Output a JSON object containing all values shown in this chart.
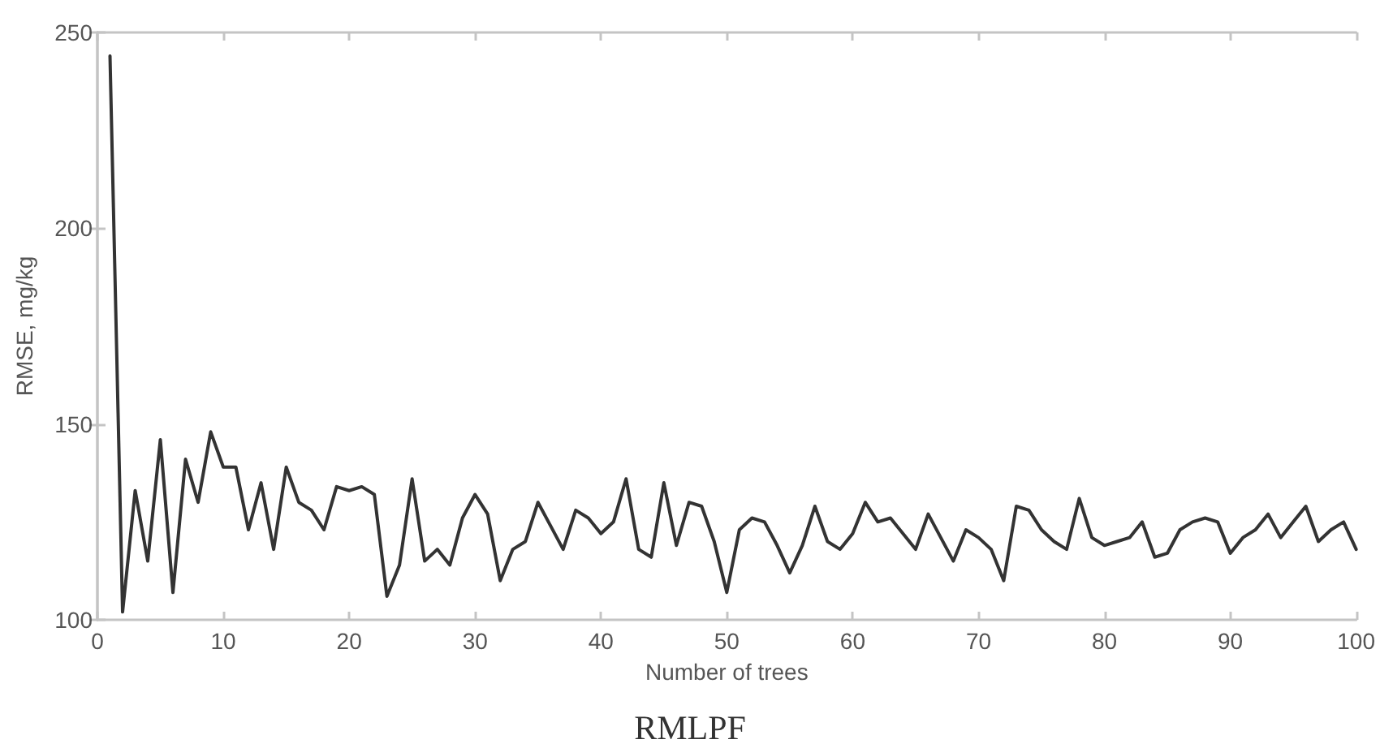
{
  "chart_data": {
    "type": "line",
    "title": "RMLPF",
    "xlabel": "Number of trees",
    "ylabel": "RMSE, mg/kg",
    "x": [
      1,
      2,
      3,
      4,
      5,
      6,
      7,
      8,
      9,
      10,
      11,
      12,
      13,
      14,
      15,
      16,
      17,
      18,
      19,
      20,
      21,
      22,
      23,
      24,
      25,
      26,
      27,
      28,
      29,
      30,
      31,
      32,
      33,
      34,
      35,
      36,
      37,
      38,
      39,
      40,
      41,
      42,
      43,
      44,
      45,
      46,
      47,
      48,
      49,
      50,
      51,
      52,
      53,
      54,
      55,
      56,
      57,
      58,
      59,
      60,
      61,
      62,
      63,
      64,
      65,
      66,
      67,
      68,
      69,
      70,
      71,
      72,
      73,
      74,
      75,
      76,
      77,
      78,
      79,
      80,
      81,
      82,
      83,
      84,
      85,
      86,
      87,
      88,
      89,
      90,
      91,
      92,
      93,
      94,
      95,
      96,
      97,
      98,
      99,
      100
    ],
    "series": [
      {
        "color": "#333333",
        "values": [
          244,
          102,
          133,
          115,
          146,
          107,
          141,
          130,
          148,
          139,
          139,
          123,
          135,
          118,
          139,
          130,
          128,
          123,
          134,
          133,
          134,
          132,
          106,
          114,
          136,
          115,
          118,
          114,
          126,
          132,
          127,
          110,
          118,
          120,
          130,
          124,
          118,
          128,
          126,
          122,
          125,
          136,
          118,
          116,
          135,
          119,
          130,
          129,
          120,
          107,
          123,
          126,
          125,
          119,
          112,
          119,
          129,
          120,
          118,
          122,
          130,
          125,
          126,
          122,
          118,
          127,
          121,
          115,
          123,
          121,
          118,
          110,
          129,
          128,
          123,
          120,
          118,
          131,
          121,
          119,
          120,
          121,
          125,
          116,
          117,
          123,
          125,
          126,
          125,
          117,
          121,
          123,
          127,
          121,
          125,
          129,
          120,
          123,
          125,
          118
        ]
      }
    ],
    "xlim": [
      0,
      100
    ],
    "xticks": [
      0,
      10,
      20,
      30,
      40,
      50,
      60,
      70,
      80,
      90,
      100
    ],
    "ylim": [
      100,
      250
    ],
    "yticks": [
      100,
      150,
      200,
      250
    ]
  }
}
